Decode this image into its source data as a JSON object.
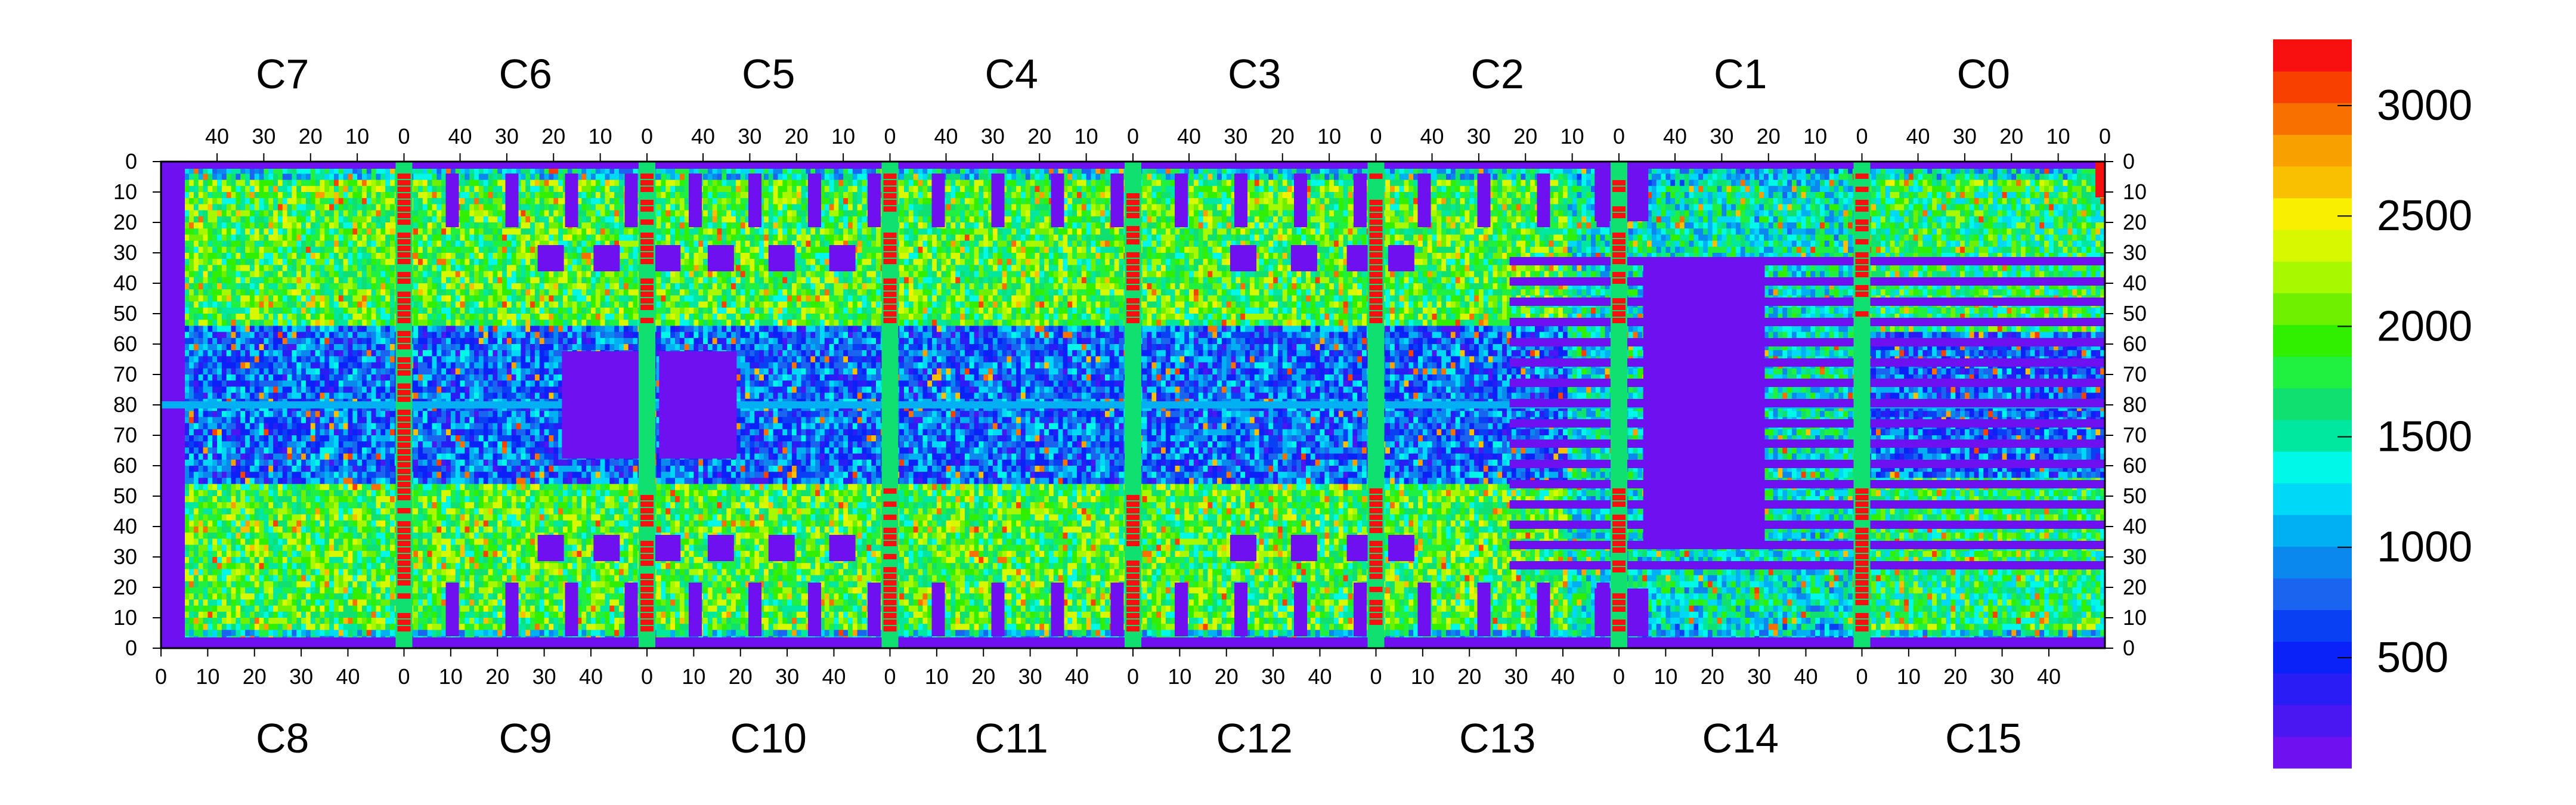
{
  "chart_data": {
    "type": "heatmap",
    "title": "",
    "xlabel": "",
    "ylabel": "",
    "top_chips": [
      "C7",
      "C6",
      "C5",
      "C4",
      "C3",
      "C2",
      "C1",
      "C0"
    ],
    "bottom_chips": [
      "C8",
      "C9",
      "C10",
      "C11",
      "C12",
      "C13",
      "C14",
      "C15"
    ],
    "top_x_ticks": [
      "40",
      "30",
      "20",
      "10",
      "0"
    ],
    "bottom_x_ticks": [
      "0",
      "10",
      "20",
      "30",
      "40"
    ],
    "y_ticks_left": [
      "0",
      "10",
      "20",
      "30",
      "40",
      "50",
      "60",
      "70",
      "80",
      "70",
      "60",
      "50",
      "40",
      "30",
      "20",
      "10",
      "0"
    ],
    "y_ticks_right": [
      "0",
      "10",
      "20",
      "30",
      "40",
      "50",
      "60",
      "70",
      "80",
      "70",
      "60",
      "50",
      "40",
      "30",
      "20",
      "10",
      "0"
    ],
    "columns_per_chip": 52,
    "rows_per_half": 80,
    "zlim": [
      0,
      3300
    ],
    "colorbar_ticks": [
      {
        "value": 500,
        "label": "500"
      },
      {
        "value": 1000,
        "label": "1000"
      },
      {
        "value": 1500,
        "label": "1500"
      },
      {
        "value": 2000,
        "label": "2000"
      },
      {
        "value": 2500,
        "label": "2500"
      },
      {
        "value": 3000,
        "label": "3000"
      }
    ],
    "colormap": [
      "#6f10f0",
      "#4a16f2",
      "#2a1cf4",
      "#0a22f8",
      "#0a40f4",
      "#1a64f0",
      "#0a88ee",
      "#00b0f2",
      "#00d8f8",
      "#00f8e8",
      "#00e8a0",
      "#10e070",
      "#20f040",
      "#30f000",
      "#6ef000",
      "#a8f800",
      "#d8f800",
      "#f8f000",
      "#f8c000",
      "#f8a000",
      "#f87000",
      "#f84000",
      "#f81010"
    ],
    "band_value": 3250,
    "low_value": 80
  }
}
